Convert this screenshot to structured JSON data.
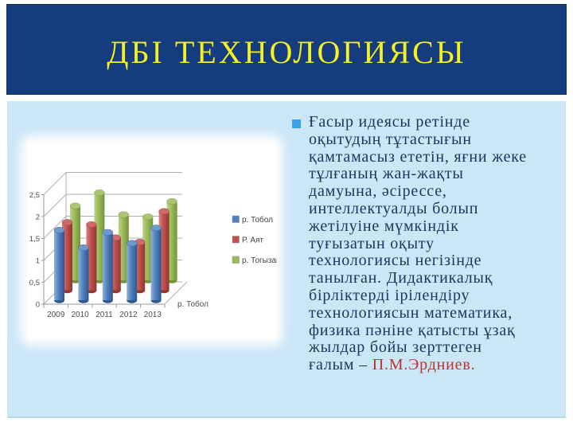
{
  "slide": {
    "title": "ДБІ ТЕХНОЛОГИЯСЫ",
    "colors": {
      "header_bg": "#143C7F",
      "title_text": "#F6F222",
      "body_bg": "#CBE6F7",
      "chart_bg": "#FFFFFF",
      "body_text": "#17375E",
      "bullet": "#39A3E5",
      "highlight_red": "#C13030"
    }
  },
  "body_text": {
    "lines": [
      "Ғасыр идеясы ретінде",
      "оқытудың тұтастығын",
      "қамтамасыз ететін, яғни жеке",
      "тұлғаның жан-жақты",
      "дамуына, әсірессе,",
      "интеллектуалды болып",
      "жетілуіне мүмкіндік",
      "туғызатын оқыту",
      "технологиясы негізінде",
      "танылған. Дидактикалық",
      "бірліктерді ірілендіру",
      "технологиясын математика,",
      "физика пәніне қатысты ұзақ",
      "жылдар бойы зерттеген",
      "ғалым – "
    ],
    "highlight": "П.М.Эрдниев.",
    "highlight_color": "#C13030"
  },
  "chart_data": {
    "type": "bar",
    "subtype": "3d-cylinder",
    "title": "",
    "xlabel": "",
    "ylabel": "",
    "categories": [
      "2009",
      "2010",
      "2011",
      "2012",
      "2013"
    ],
    "series": [
      {
        "name": "р. Тобол",
        "values": [
          1.6,
          1.2,
          1.55,
          1.3,
          1.65
        ],
        "color": "#4F81BD",
        "top_color": "#6E99C9",
        "light": "#8FB0D8",
        "dark": "#2F578C"
      },
      {
        "name": "Р. Аят",
        "values": [
          1.55,
          1.5,
          1.2,
          1.1,
          1.8
        ],
        "color": "#C0504D",
        "top_color": "#CC6B68",
        "light": "#D98types"
      }
    ],
    "ylim": [
      0,
      2.5
    ],
    "ytick_step": 0.5,
    "ytick_labels": [
      "0",
      "0,5",
      "1",
      "1,5",
      "2",
      "2,5"
    ],
    "depth_axis_label": "р. Тобол",
    "legend_position": "right",
    "grid": true,
    "label_color": "#4D4D4D",
    "grid_color": "#AFAFAF",
    "axis_color": "#9A9A9A"
  }
}
